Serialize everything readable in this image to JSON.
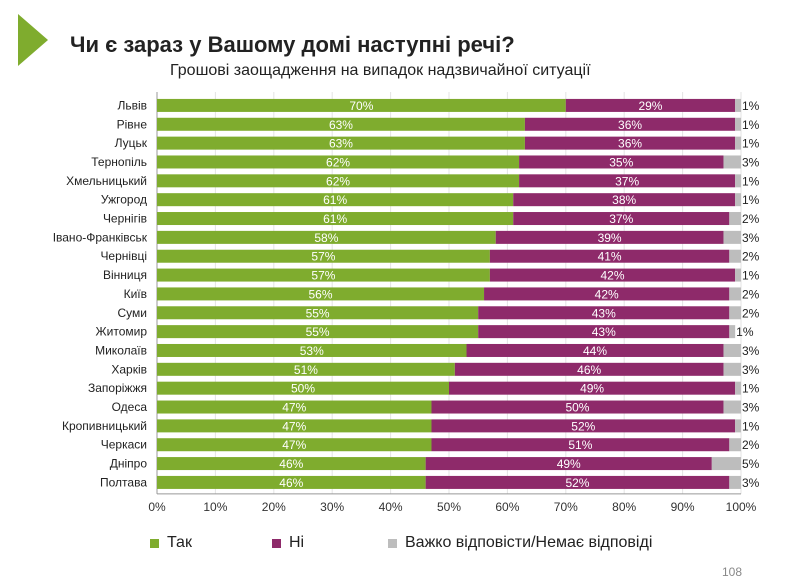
{
  "title": "Чи є зараз у Вашому домі наступні речі?",
  "subtitle": "Грошові заощадження на випадок надзвичайної ситуації",
  "page_number": "108",
  "colors": {
    "yes": "#7fac2e",
    "no": "#8e2a6a",
    "hard": "#bdbdbd",
    "arrow": "#7fac2e"
  },
  "chart_data": {
    "type": "bar",
    "orientation": "horizontal",
    "stacked": "100%",
    "categories": [
      "Львів",
      "Рівне",
      "Луцьк",
      "Тернопіль",
      "Хмельницький",
      "Ужгород",
      "Чернігів",
      "Івано-Франківськ",
      "Чернівці",
      "Вінниця",
      "Київ",
      "Суми",
      "Житомир",
      "Миколаїв",
      "Харків",
      "Запоріжжя",
      "Одеса",
      "Кропивницький",
      "Черкаси",
      "Дніпро",
      "Полтава"
    ],
    "series": [
      {
        "name": "Так",
        "values": [
          70,
          63,
          63,
          62,
          62,
          61,
          61,
          58,
          57,
          57,
          56,
          55,
          55,
          53,
          51,
          50,
          47,
          47,
          47,
          46,
          46
        ]
      },
      {
        "name": "Ні",
        "values": [
          29,
          36,
          36,
          35,
          37,
          38,
          37,
          39,
          41,
          42,
          42,
          43,
          43,
          44,
          46,
          49,
          50,
          52,
          51,
          49,
          52
        ]
      },
      {
        "name": "Важко відповісти/Немає відповіді",
        "values": [
          1,
          1,
          1,
          3,
          1,
          1,
          2,
          3,
          2,
          1,
          2,
          2,
          1,
          3,
          3,
          1,
          3,
          1,
          2,
          5,
          3
        ]
      }
    ],
    "xlim": [
      0,
      100
    ],
    "xticks": [
      "0%",
      "10%",
      "20%",
      "30%",
      "40%",
      "50%",
      "60%",
      "70%",
      "80%",
      "90%",
      "100%"
    ],
    "value_suffix": "%",
    "legend_position": "bottom",
    "grid": true
  }
}
